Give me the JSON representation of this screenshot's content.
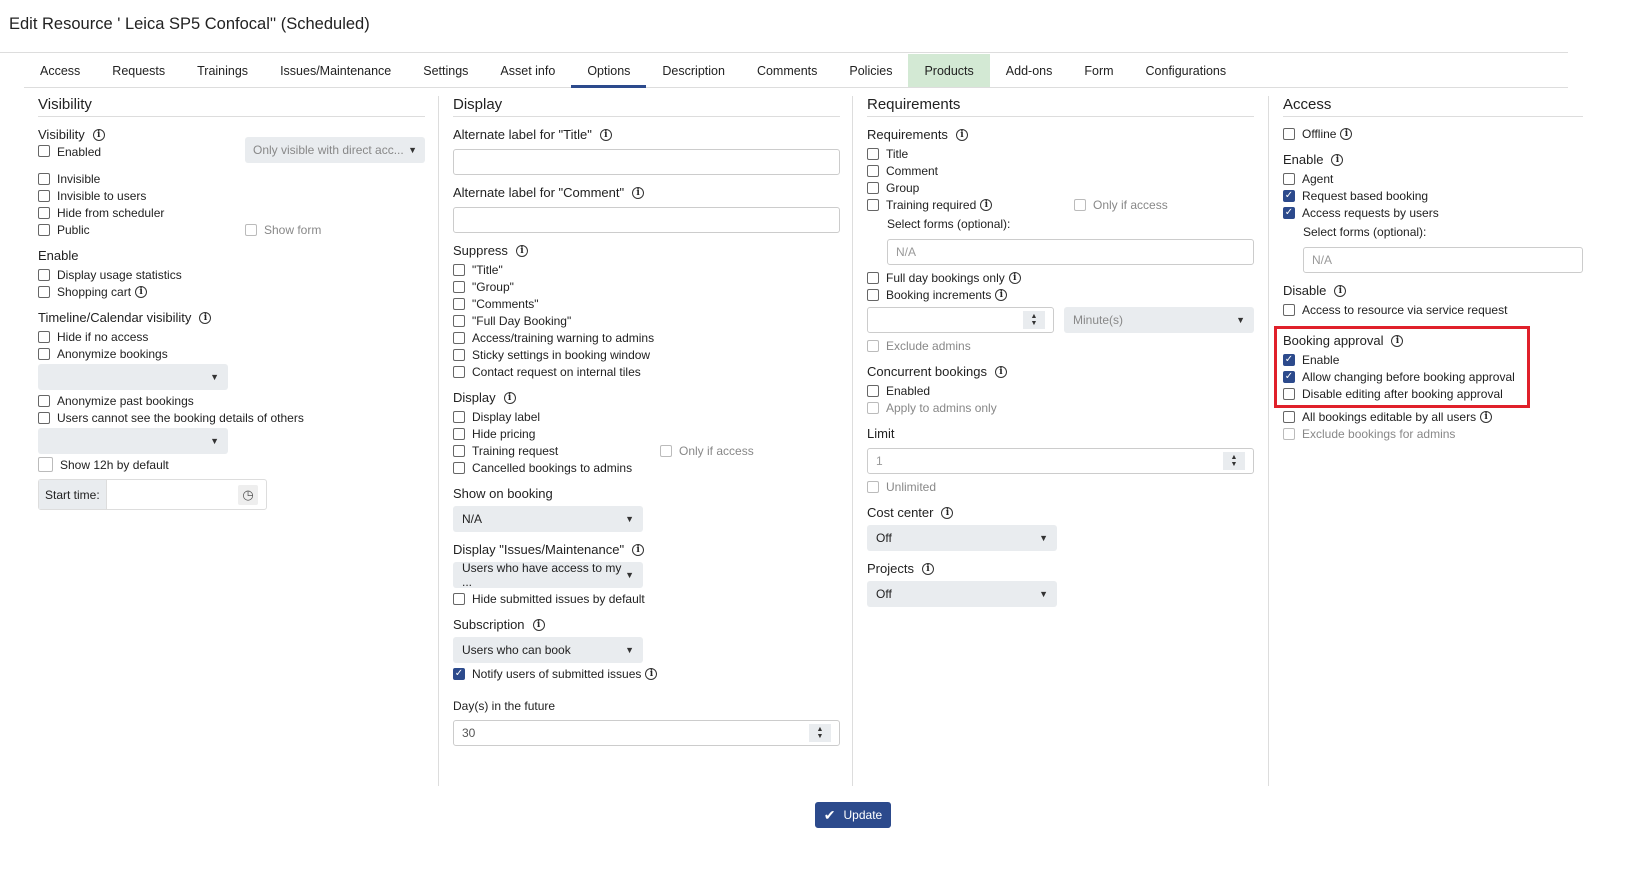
{
  "title": "Edit Resource ' Leica SP5 Confocal'' (Scheduled)",
  "tabs": [
    {
      "label": "Access"
    },
    {
      "label": "Requests"
    },
    {
      "label": "Trainings"
    },
    {
      "label": "Issues/Maintenance"
    },
    {
      "label": "Settings"
    },
    {
      "label": "Asset info"
    },
    {
      "label": "Options",
      "active": true
    },
    {
      "label": "Description"
    },
    {
      "label": "Comments"
    },
    {
      "label": "Policies"
    },
    {
      "label": "Products",
      "highlight": true
    },
    {
      "label": "Add-ons"
    },
    {
      "label": "Form"
    },
    {
      "label": "Configurations"
    }
  ],
  "colors": {
    "accent": "#2c4a8c",
    "highlight_tab": "#d3e9d4",
    "annotation_box": "#e0202a"
  },
  "columns": [
    {
      "heading": "Visibility",
      "items": [
        {
          "t": "sh",
          "label": "Visibility",
          "info": true
        },
        {
          "t": "cb",
          "label": "Enabled",
          "aside_select": "Only visible with direct acc..."
        },
        {
          "t": "cb",
          "label": "Invisible"
        },
        {
          "t": "cb",
          "label": "Invisible to users"
        },
        {
          "t": "cb",
          "label": "Hide from scheduler"
        },
        {
          "t": "cb",
          "label": "Public",
          "aside": {
            "label": "Show form",
            "disabled": true
          }
        },
        {
          "t": "sh",
          "label": "Enable"
        },
        {
          "t": "cb",
          "label": "Display usage statistics"
        },
        {
          "t": "cb",
          "label": "Shopping cart",
          "info": true
        },
        {
          "t": "sh",
          "label": "Timeline/Calendar visibility",
          "info": true
        },
        {
          "t": "cb",
          "label": "Hide if no access"
        },
        {
          "t": "cb",
          "label": "Anonymize bookings"
        },
        {
          "t": "sel",
          "value": ""
        },
        {
          "t": "cb",
          "label": "Anonymize past bookings"
        },
        {
          "t": "cb",
          "label": "Users cannot see the booking details of others"
        },
        {
          "t": "sel",
          "value": ""
        },
        {
          "t": "cb",
          "label": "Show 12h by default",
          "big": true
        },
        {
          "t": "time",
          "label": "Start time:",
          "value": "",
          "icon": "clock-icon"
        }
      ]
    },
    {
      "heading": "Display",
      "items": [
        {
          "t": "sh",
          "label": "Alternate label for \"Title\"",
          "info": true
        },
        {
          "t": "inp",
          "value": ""
        },
        {
          "t": "sh",
          "label": "Alternate label for \"Comment\"",
          "info": true
        },
        {
          "t": "inp",
          "value": ""
        },
        {
          "t": "sh",
          "label": "Suppress",
          "info": true
        },
        {
          "t": "cb",
          "label": "\"Title\""
        },
        {
          "t": "cb",
          "label": "\"Group\""
        },
        {
          "t": "cb",
          "label": "\"Comments\""
        },
        {
          "t": "cb",
          "label": "\"Full Day Booking\""
        },
        {
          "t": "cb",
          "label": "Access/training warning to admins"
        },
        {
          "t": "cb",
          "label": "Sticky settings in booking window"
        },
        {
          "t": "cb",
          "label": "Contact request on internal tiles"
        },
        {
          "t": "sh",
          "label": "Display",
          "info": true
        },
        {
          "t": "cb",
          "label": "Display label"
        },
        {
          "t": "cb",
          "label": "Hide pricing"
        },
        {
          "t": "cb",
          "label": "Training request",
          "aside": {
            "label": "Only if access",
            "disabled": true
          }
        },
        {
          "t": "cb",
          "label": "Cancelled bookings to admins"
        },
        {
          "t": "sh",
          "label": "Show on booking"
        },
        {
          "t": "sel",
          "value": "N/A"
        },
        {
          "t": "sh",
          "label": "Display \"Issues/Maintenance\"",
          "info": true
        },
        {
          "t": "sel",
          "value": "Users who have access to my ..."
        },
        {
          "t": "cb",
          "label": "Hide submitted issues by default"
        },
        {
          "t": "sh",
          "label": "Subscription",
          "info": true
        },
        {
          "t": "sel",
          "value": "Users who can book"
        },
        {
          "t": "cb",
          "label": "Notify users of submitted issues",
          "checked": true,
          "info": true
        },
        {
          "t": "sh",
          "label": "Day(s) in the future",
          "small": true
        },
        {
          "t": "num",
          "value": "30"
        }
      ]
    },
    {
      "heading": "Requirements",
      "items": [
        {
          "t": "sh",
          "label": "Requirements",
          "info": true
        },
        {
          "t": "cb",
          "label": "Title"
        },
        {
          "t": "cb",
          "label": "Comment"
        },
        {
          "t": "cb",
          "label": "Group"
        },
        {
          "t": "cb",
          "label": "Training required",
          "info": true,
          "aside": {
            "label": "Only if access",
            "disabled": true
          }
        },
        {
          "t": "sub",
          "label": "Select forms (optional):"
        },
        {
          "t": "inp",
          "value": "N/A",
          "indent": true,
          "readonly": true
        },
        {
          "t": "cb",
          "label": "Full day bookings only",
          "info": true
        },
        {
          "t": "cb",
          "label": "Booking increments",
          "info": true
        },
        {
          "t": "pair",
          "value": "",
          "unit": "Minute(s)"
        },
        {
          "t": "cb",
          "label": "Exclude admins",
          "disabled": true
        },
        {
          "t": "sh",
          "label": "Concurrent bookings",
          "info": true
        },
        {
          "t": "cb",
          "label": "Enabled"
        },
        {
          "t": "cb",
          "label": "Apply to admins only",
          "disabled": true
        },
        {
          "t": "sh",
          "label": "Limit"
        },
        {
          "t": "num",
          "value": "1",
          "readonly": true
        },
        {
          "t": "cb",
          "label": "Unlimited",
          "disabled": true
        },
        {
          "t": "sh",
          "label": "Cost center",
          "info": true
        },
        {
          "t": "sel",
          "value": "Off"
        },
        {
          "t": "sh",
          "label": "Projects",
          "info": true
        },
        {
          "t": "sel",
          "value": "Off"
        }
      ]
    },
    {
      "heading": "Access",
      "items": [
        {
          "t": "cb",
          "label": "Offline",
          "info": true
        },
        {
          "t": "sh",
          "label": "Enable",
          "info": true
        },
        {
          "t": "cb",
          "label": "Agent"
        },
        {
          "t": "cb",
          "label": "Request based booking",
          "checked": true
        },
        {
          "t": "cb",
          "label": "Access requests by users",
          "checked": true
        },
        {
          "t": "sub",
          "label": "Select forms (optional):"
        },
        {
          "t": "inp",
          "value": "N/A",
          "indent": true,
          "readonly": true
        },
        {
          "t": "sh",
          "label": "Disable",
          "info": true
        },
        {
          "t": "cb",
          "label": "Access to resource via service request"
        },
        {
          "t": "box_start"
        },
        {
          "t": "sh",
          "label": "Booking approval",
          "info": true
        },
        {
          "t": "cb",
          "label": "Enable",
          "checked": true
        },
        {
          "t": "cb",
          "label": "Allow changing before booking approval",
          "checked": true
        },
        {
          "t": "cb",
          "label": "Disable editing after booking approval"
        },
        {
          "t": "box_end"
        },
        {
          "t": "cb",
          "label": "All bookings editable by all users",
          "info": true
        },
        {
          "t": "cb",
          "label": "Exclude bookings for admins",
          "disabled": true
        }
      ]
    }
  ],
  "update_button": {
    "label": "Update",
    "icon": "check-icon"
  }
}
